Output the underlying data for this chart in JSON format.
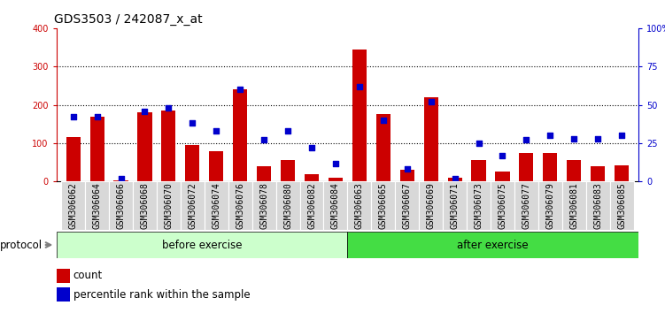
{
  "title": "GDS3503 / 242087_x_at",
  "categories": [
    "GSM306062",
    "GSM306064",
    "GSM306066",
    "GSM306068",
    "GSM306070",
    "GSM306072",
    "GSM306074",
    "GSM306076",
    "GSM306078",
    "GSM306080",
    "GSM306082",
    "GSM306084",
    "GSM306063",
    "GSM306065",
    "GSM306067",
    "GSM306069",
    "GSM306071",
    "GSM306073",
    "GSM306075",
    "GSM306077",
    "GSM306079",
    "GSM306081",
    "GSM306083",
    "GSM306085"
  ],
  "count_values": [
    115,
    170,
    2,
    180,
    185,
    95,
    80,
    240,
    40,
    55,
    20,
    10,
    345,
    175,
    30,
    220,
    10,
    55,
    25,
    75,
    75,
    55,
    40,
    42
  ],
  "percentile_values": [
    42,
    42,
    2,
    46,
    48,
    38,
    33,
    60,
    27,
    33,
    22,
    12,
    62,
    40,
    8,
    52,
    2,
    25,
    17,
    27,
    30,
    28,
    28,
    30
  ],
  "before_exercise_count": 12,
  "after_exercise_count": 12,
  "before_label": "before exercise",
  "after_label": "after exercise",
  "protocol_label": "protocol",
  "count_label": "count",
  "percentile_label": "percentile rank within the sample",
  "bar_color": "#cc0000",
  "dot_color": "#0000cc",
  "before_bg": "#ccffcc",
  "after_bg": "#44dd44",
  "tick_bg": "#d8d8d8",
  "plot_bg": "#ffffff",
  "ylim_left": [
    0,
    400
  ],
  "ylim_right": [
    0,
    100
  ],
  "yticks_left": [
    0,
    100,
    200,
    300,
    400
  ],
  "yticks_right": [
    0,
    25,
    50,
    75,
    100
  ],
  "grid_values": [
    100,
    200,
    300
  ],
  "title_fontsize": 10,
  "tick_fontsize": 7,
  "label_fontsize": 8.5
}
